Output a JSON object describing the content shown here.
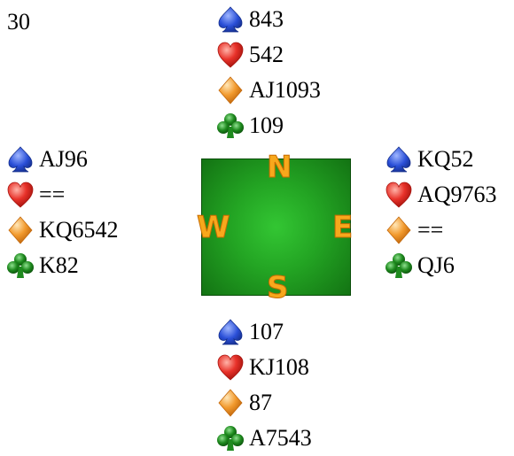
{
  "board": {
    "number": "30"
  },
  "compass": {
    "north": "N",
    "south": "S",
    "east": "E",
    "west": "W"
  },
  "hands": {
    "north": {
      "spades": "843",
      "hearts": "542",
      "diamonds": "AJ1093",
      "clubs": "109"
    },
    "west": {
      "spades": "AJ96",
      "hearts": "==",
      "diamonds": "KQ6542",
      "clubs": "K82"
    },
    "east": {
      "spades": "KQ52",
      "hearts": "AQ9763",
      "diamonds": "==",
      "clubs": "QJ6"
    },
    "south": {
      "spades": "107",
      "hearts": "KJ108",
      "diamonds": "87",
      "clubs": "A7543"
    }
  },
  "suit_colors": {
    "spades": "#2a4fd8",
    "hearts": "#e8322a",
    "diamonds": "#f29a2e",
    "clubs": "#1e8a1e"
  },
  "icons": {
    "spades": "spade-icon",
    "hearts": "heart-icon",
    "diamonds": "diamond-icon",
    "clubs": "club-icon"
  }
}
